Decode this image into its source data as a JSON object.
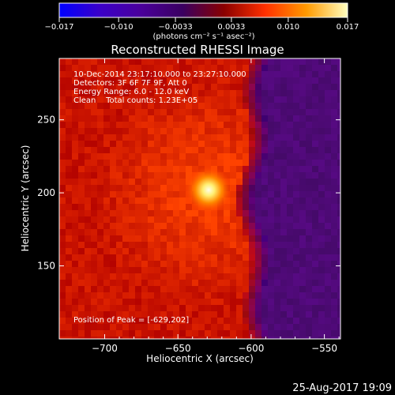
{
  "colorbar": {
    "tick_labels": [
      "−0.017",
      "−0.010",
      "−0.0033",
      "0.0033",
      "0.010",
      "0.017"
    ],
    "tick_values": [
      -0.017,
      -0.01,
      -0.0033,
      0.0033,
      0.01,
      0.017
    ],
    "range": [
      -0.017,
      0.017
    ],
    "units_label": "(photons cm⁻² s⁻¹ asec⁻²)",
    "colors": [
      "#0000ff",
      "#3b00c8",
      "#4a009a",
      "#3a0060",
      "#8a0000",
      "#ff3000",
      "#ff9a00",
      "#ffffc0"
    ]
  },
  "chart_data": {
    "type": "heatmap",
    "title": "Reconstructed RHESSI Image",
    "xlabel": "Heliocentric X (arcsec)",
    "ylabel": "Heliocentric Y (arcsec)",
    "xlim": [
      -731,
      -539
    ],
    "ylim": [
      100,
      292
    ],
    "xticks": [
      -700,
      -650,
      -600,
      -550
    ],
    "yticks": [
      150,
      200,
      250
    ],
    "xtick_labels": [
      "−700",
      "−650",
      "−600",
      "−550"
    ],
    "ytick_labels": [
      "150",
      "200",
      "250"
    ],
    "annotations": [
      "10-Dec-2014 23:17:10.000 to 23:27:10.000",
      "Detectors: 3F 6F 7F 9F, Att 0",
      "Energy Range: 6.0 - 12.0 keV",
      "Clean    Total counts: 1.23E+05"
    ],
    "peak_label": "Position of Peak = [-629,202]",
    "peak": {
      "x": -629,
      "y": 202
    },
    "colors": {
      "background_glow": "#e12a00",
      "dark_region": "#4c0a78",
      "peak_core": "#ffffe0"
    }
  },
  "footer": {
    "timestamp": "25-Aug-2017 19:09"
  }
}
